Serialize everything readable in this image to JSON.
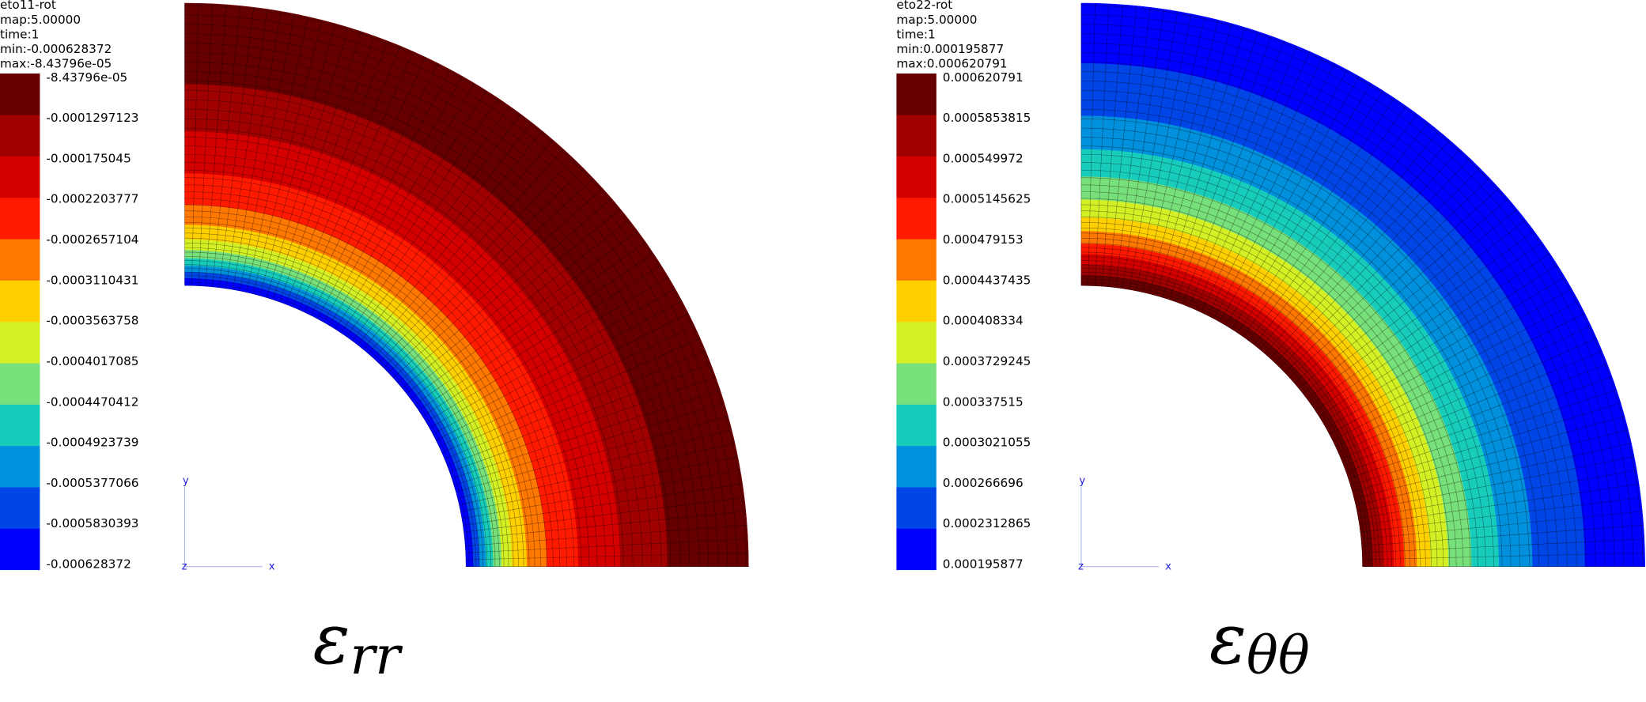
{
  "panels": [
    {
      "header": [
        "eto11-rot",
        "map:5.00000",
        "time:1",
        "min:-0.000628372",
        "max:-8.43796e-05"
      ],
      "legend": [
        "-8.43796e-05",
        "-0.0001297123",
        "-0.000175045",
        "-0.0002203777",
        "-0.0002657104",
        "-0.0003110431",
        "-0.0003563758",
        "-0.0004017085",
        "-0.0004470412",
        "-0.0004923739",
        "-0.0005377066",
        "-0.0005830393",
        "-0.000628372"
      ],
      "axes": {
        "y": "y",
        "z": "z",
        "x": "x"
      },
      "caption": {
        "symbol": "ε",
        "subscript": "rr"
      }
    },
    {
      "header": [
        "eto22-rot",
        "map:5.00000",
        "time:1",
        "min:0.000195877",
        "max:0.000620791"
      ],
      "legend": [
        "0.000620791",
        "0.0005853815",
        "0.000549972",
        "0.0005145625",
        "0.000479153",
        "0.0004437435",
        "0.000408334",
        "0.0003729245",
        "0.000337515",
        "0.0003021055",
        "0.000266696",
        "0.0002312865",
        "0.000195877"
      ],
      "axes": {
        "y": "y",
        "z": "z",
        "x": "x"
      },
      "caption": {
        "symbol": "ε",
        "subscript": "θθ"
      }
    }
  ]
}
